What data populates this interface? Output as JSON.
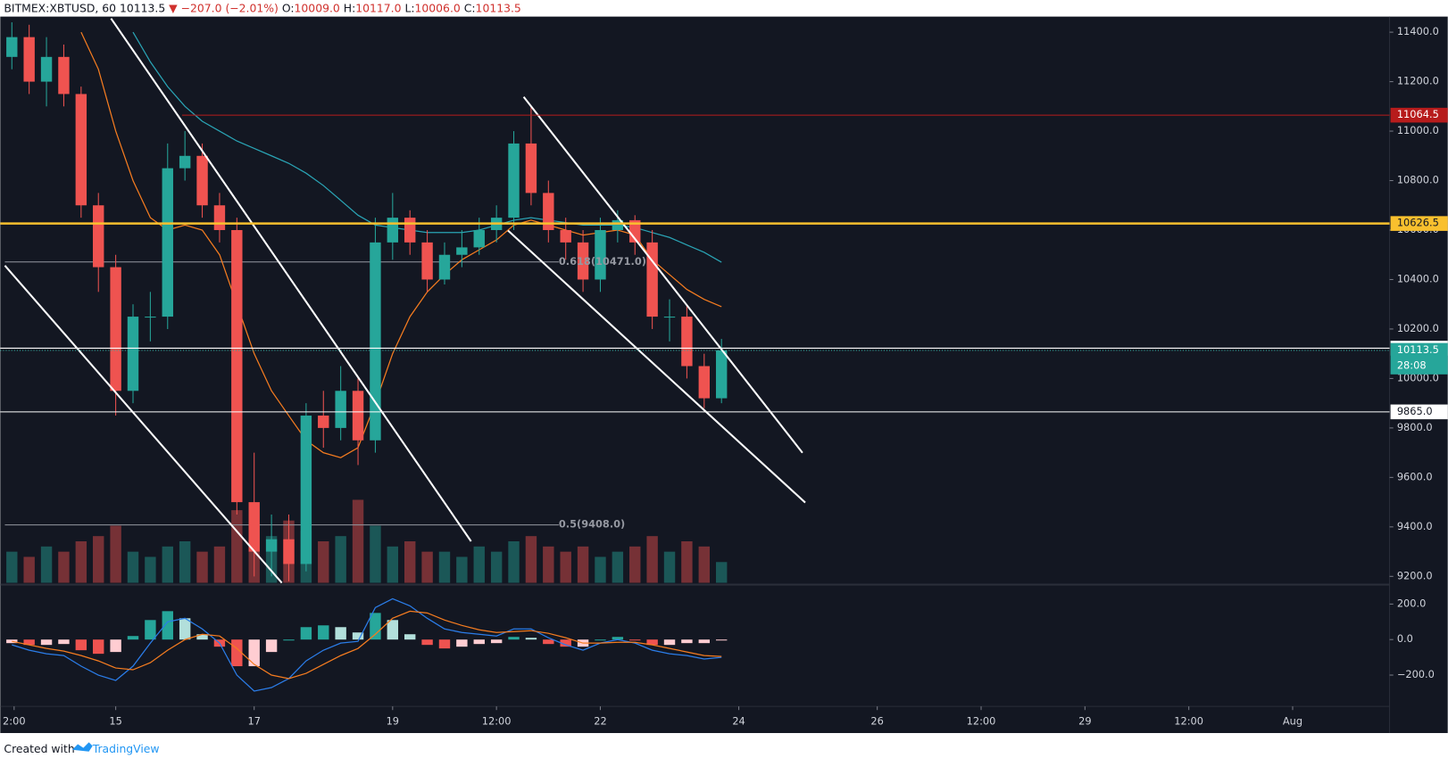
{
  "header": {
    "symbol": "BITMEX:XBTUSD, 60",
    "last": "10113.5",
    "arrow": "▼",
    "change": "−207.0 (−2.01%)",
    "o_label": "O:",
    "o": "10009.0",
    "h_label": "H:",
    "h": "10117.0",
    "l_label": "L:",
    "l": "10006.0",
    "c_label": "C:",
    "c": "10113.5"
  },
  "chart_data": {
    "type": "candlestick",
    "categories": [
      null,
      null,
      null,
      null,
      null,
      null,
      null,
      null,
      null,
      null,
      null,
      null,
      null,
      null,
      null,
      null,
      null,
      null,
      null,
      null,
      null,
      null,
      null,
      null,
      null,
      null,
      null,
      null,
      null,
      null,
      null,
      null,
      null,
      null,
      null,
      null,
      null,
      null,
      null,
      null,
      null,
      null
    ],
    "open": [
      11300,
      11380,
      11200,
      11300,
      11150,
      10700,
      10450,
      9950,
      10250,
      10250,
      10850,
      10900,
      10700,
      10600,
      9500,
      9300,
      9350,
      9250,
      9850,
      9800,
      9950,
      9750,
      10550,
      10650,
      10550,
      10400,
      10500,
      10530,
      10600,
      10650,
      10950,
      10750,
      10600,
      10550,
      10400,
      10600,
      10640,
      10550,
      10250,
      10250,
      10050,
      9920
    ],
    "high": [
      11440,
      11430,
      11380,
      11350,
      11180,
      10750,
      10500,
      10300,
      10350,
      10950,
      11000,
      10950,
      10750,
      10650,
      9700,
      9450,
      9450,
      9900,
      9950,
      10050,
      10000,
      10650,
      10750,
      10680,
      10600,
      10550,
      10600,
      10650,
      10700,
      11000,
      11100,
      10800,
      10650,
      10600,
      10650,
      10680,
      10660,
      10600,
      10320,
      10300,
      10100,
      10160
    ],
    "low": [
      11250,
      11150,
      11100,
      11100,
      10650,
      10350,
      9850,
      9900,
      10150,
      10200,
      10800,
      10650,
      10550,
      9450,
      9200,
      9200,
      9180,
      9220,
      9720,
      9750,
      9650,
      9700,
      10480,
      10500,
      10350,
      10380,
      10450,
      10500,
      10550,
      10600,
      10700,
      10550,
      10480,
      10350,
      10350,
      10550,
      10500,
      10200,
      10150,
      10000,
      9880,
      9900
    ],
    "close": [
      11380,
      11200,
      11300,
      11150,
      10700,
      10450,
      9950,
      10250,
      10250,
      10850,
      10900,
      10700,
      10600,
      9500,
      9300,
      9350,
      9250,
      9850,
      9800,
      9950,
      9750,
      10550,
      10650,
      10550,
      10400,
      10500,
      10530,
      10600,
      10650,
      10950,
      10750,
      10600,
      10550,
      10400,
      10600,
      10640,
      10550,
      10250,
      10250,
      10050,
      9920,
      10113.5
    ],
    "up_color": "#26a69a",
    "down_color": "#ef5350",
    "volume": [
      30,
      25,
      35,
      30,
      40,
      45,
      55,
      30,
      25,
      35,
      40,
      30,
      35,
      70,
      55,
      45,
      60,
      50,
      40,
      45,
      80,
      55,
      35,
      40,
      30,
      30,
      25,
      35,
      30,
      40,
      45,
      35,
      30,
      35,
      25,
      30,
      35,
      45,
      30,
      40,
      35,
      20
    ],
    "moving_averages": [
      {
        "color": "#2aa4b5",
        "values": [
          null,
          null,
          null,
          null,
          null,
          null,
          null,
          11400,
          11280,
          11180,
          11100,
          11040,
          11000,
          10960,
          10930,
          10900,
          10870,
          10830,
          10780,
          10720,
          10660,
          10620,
          10610,
          10600,
          10590,
          10590,
          10590,
          10600,
          10620,
          10640,
          10650,
          10640,
          10630,
          10620,
          10620,
          10620,
          10610,
          10590,
          10570,
          10540,
          10510,
          10470
        ]
      },
      {
        "color": "#f57c20",
        "values": [
          null,
          null,
          null,
          null,
          11400,
          11250,
          11000,
          10800,
          10650,
          10600,
          10620,
          10600,
          10500,
          10300,
          10100,
          9950,
          9850,
          9750,
          9700,
          9680,
          9720,
          9900,
          10100,
          10250,
          10350,
          10420,
          10480,
          10520,
          10560,
          10620,
          10640,
          10620,
          10600,
          10580,
          10590,
          10600,
          10580,
          10480,
          10420,
          10360,
          10320,
          10290
        ]
      }
    ],
    "ylim": [
      9174,
      11463
    ],
    "yticks": [
      {
        "value": 11400,
        "label": "11400.0"
      },
      {
        "value": 11200,
        "label": "11200.0"
      },
      {
        "value": 11000,
        "label": "11000.0"
      },
      {
        "value": 10800,
        "label": "10800.0"
      },
      {
        "value": 10600,
        "label": "10600.0"
      },
      {
        "value": 10400,
        "label": "10400.0"
      },
      {
        "value": 10200,
        "label": "10200.0"
      },
      {
        "value": 10000,
        "label": "10000.0"
      },
      {
        "value": 9800,
        "label": "9800.0"
      },
      {
        "value": 9600,
        "label": "9600.0"
      },
      {
        "value": 9400,
        "label": "9400.0"
      },
      {
        "value": 9200,
        "label": "9200.0"
      }
    ],
    "xlim": [
      -0.67,
      79.6
    ],
    "xticks": [
      {
        "value": 0.13,
        "label": "2:00"
      },
      {
        "value": 6,
        "label": "15"
      },
      {
        "value": 14,
        "label": "17"
      },
      {
        "value": 22,
        "label": "19"
      },
      {
        "value": 28,
        "label": "12:00"
      },
      {
        "value": 34,
        "label": "22"
      },
      {
        "value": 42,
        "label": "24"
      },
      {
        "value": 50,
        "label": "26"
      },
      {
        "value": 56,
        "label": "12:00"
      },
      {
        "value": 62,
        "label": "29"
      },
      {
        "value": 68,
        "label": "12:00"
      },
      {
        "value": 74,
        "label": "Aug"
      }
    ],
    "levels": [
      {
        "value": 11064.5,
        "label": "11064.5",
        "color": "#b71c1c",
        "text_color": "#ffffff"
      },
      {
        "value": 10626.5,
        "label": "10626.5",
        "color": "#f9c02e",
        "text_color": "#131722"
      },
      {
        "value": 10122.5,
        "label": "10122.5",
        "color": "#ffffff",
        "text_color": "#131722"
      },
      {
        "value": 9865.0,
        "label": "9865.0",
        "color": "#ffffff",
        "text_color": "#131722"
      }
    ],
    "fib": [
      {
        "value": 10471.0,
        "label": "0.618(10471.0)"
      },
      {
        "value": 9408.0,
        "label": "0.5(9408.0)"
      }
    ],
    "last_price": {
      "value": 10113.5,
      "label": "10113.5",
      "countdown": "28:08",
      "color": "#26a69a"
    },
    "macd": {
      "ylim": [
        -371,
        299
      ],
      "yticks": [
        {
          "value": 200,
          "label": "200.0"
        },
        {
          "value": 0,
          "label": "0.0"
        },
        {
          "value": -200,
          "label": "−200.0"
        }
      ],
      "macd": {
        "color": "#2b7de9",
        "values": [
          -30,
          -60,
          -80,
          -90,
          -150,
          -200,
          -230,
          -150,
          -20,
          100,
          120,
          60,
          -20,
          -200,
          -290,
          -270,
          -220,
          -120,
          -60,
          -20,
          -10,
          180,
          230,
          190,
          120,
          60,
          40,
          30,
          20,
          60,
          60,
          10,
          -30,
          -60,
          -20,
          0,
          -20,
          -60,
          -80,
          -90,
          -110,
          -100
        ]
      },
      "signal": {
        "color": "#f57c20",
        "values": [
          -10,
          -30,
          -50,
          -65,
          -90,
          -120,
          -160,
          -170,
          -130,
          -60,
          0,
          30,
          20,
          -50,
          -140,
          -200,
          -220,
          -190,
          -140,
          -90,
          -50,
          30,
          120,
          160,
          150,
          110,
          80,
          55,
          40,
          45,
          50,
          35,
          10,
          -20,
          -20,
          -15,
          -15,
          -30,
          -50,
          -70,
          -90,
          -95
        ]
      },
      "histogram": [
        -20,
        -30,
        -30,
        -25,
        -60,
        -80,
        -70,
        20,
        110,
        160,
        120,
        30,
        -40,
        -150,
        -150,
        -70,
        0,
        70,
        80,
        70,
        40,
        150,
        110,
        30,
        -30,
        -50,
        -40,
        -25,
        -20,
        15,
        10,
        -25,
        -40,
        -40,
        0,
        15,
        -5,
        -30,
        -30,
        -20,
        -20,
        -5
      ]
    }
  },
  "footer": {
    "text": "Created with",
    "brand": "TradingView"
  }
}
